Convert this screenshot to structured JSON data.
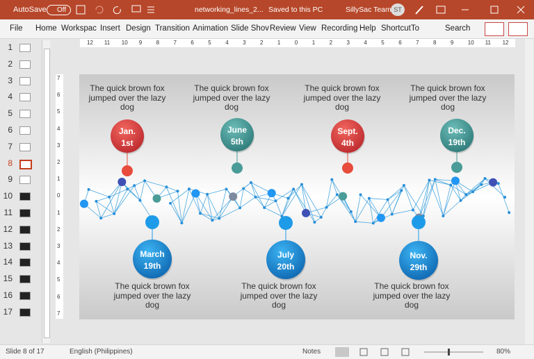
{
  "title_bar": {
    "autosave": "AutoSave",
    "toggle": "Off",
    "file_name": "networking_lines_2...",
    "save_status": "Saved to this PC",
    "user": "SillySac Team",
    "initials": "ST"
  },
  "menu": [
    "File",
    "Home",
    "Workspac",
    "Insert",
    "Design",
    "Transition",
    "Animation",
    "Slide Shov",
    "Review",
    "View",
    "Recording",
    "Help",
    "ShortcutTo"
  ],
  "search": "Search",
  "slide_numbers": [
    "1",
    "2",
    "3",
    "4",
    "5",
    "6",
    "7",
    "8",
    "9",
    "10",
    "11",
    "12",
    "13",
    "14",
    "15",
    "16",
    "17"
  ],
  "ruler": {
    "horizontal": [
      "12",
      "11",
      "10",
      "9",
      "8",
      "7",
      "6",
      "5",
      "4",
      "3",
      "2",
      "1",
      "0",
      "1",
      "2",
      "3",
      "4",
      "5",
      "6",
      "7",
      "8",
      "9",
      "10",
      "11",
      "12"
    ],
    "vertical": [
      "7",
      "6",
      "5",
      "4",
      "3",
      "2",
      "1",
      "0",
      "1",
      "2",
      "3",
      "4",
      "5",
      "6",
      "7"
    ]
  },
  "slide": {
    "events": [
      {
        "month": "Jan.",
        "day": "1st",
        "caption": "The quick brown fox jumped over the lazy dog"
      },
      {
        "month": "March",
        "day": "19th",
        "caption": "The quick brown fox jumped over the lazy dog"
      },
      {
        "month": "June",
        "day": "5th",
        "caption": "The quick brown fox jumped over the lazy dog"
      },
      {
        "month": "July",
        "day": "20th",
        "caption": "The quick brown fox jumped over the lazy dog"
      },
      {
        "month": "Sept.",
        "day": "4th",
        "caption": "The quick brown fox jumped over the lazy dog"
      },
      {
        "month": "Nov.",
        "day": "29th",
        "caption": "The quick brown fox jumped over the lazy dog"
      },
      {
        "month": "Dec.",
        "day": "19th",
        "caption": "The quick brown fox jumped over the lazy dog"
      }
    ]
  },
  "status_bar": {
    "slide_count": "Slide 8 of 17",
    "language": "English (Philippines)",
    "notes": "Notes",
    "zoom": "80%"
  }
}
